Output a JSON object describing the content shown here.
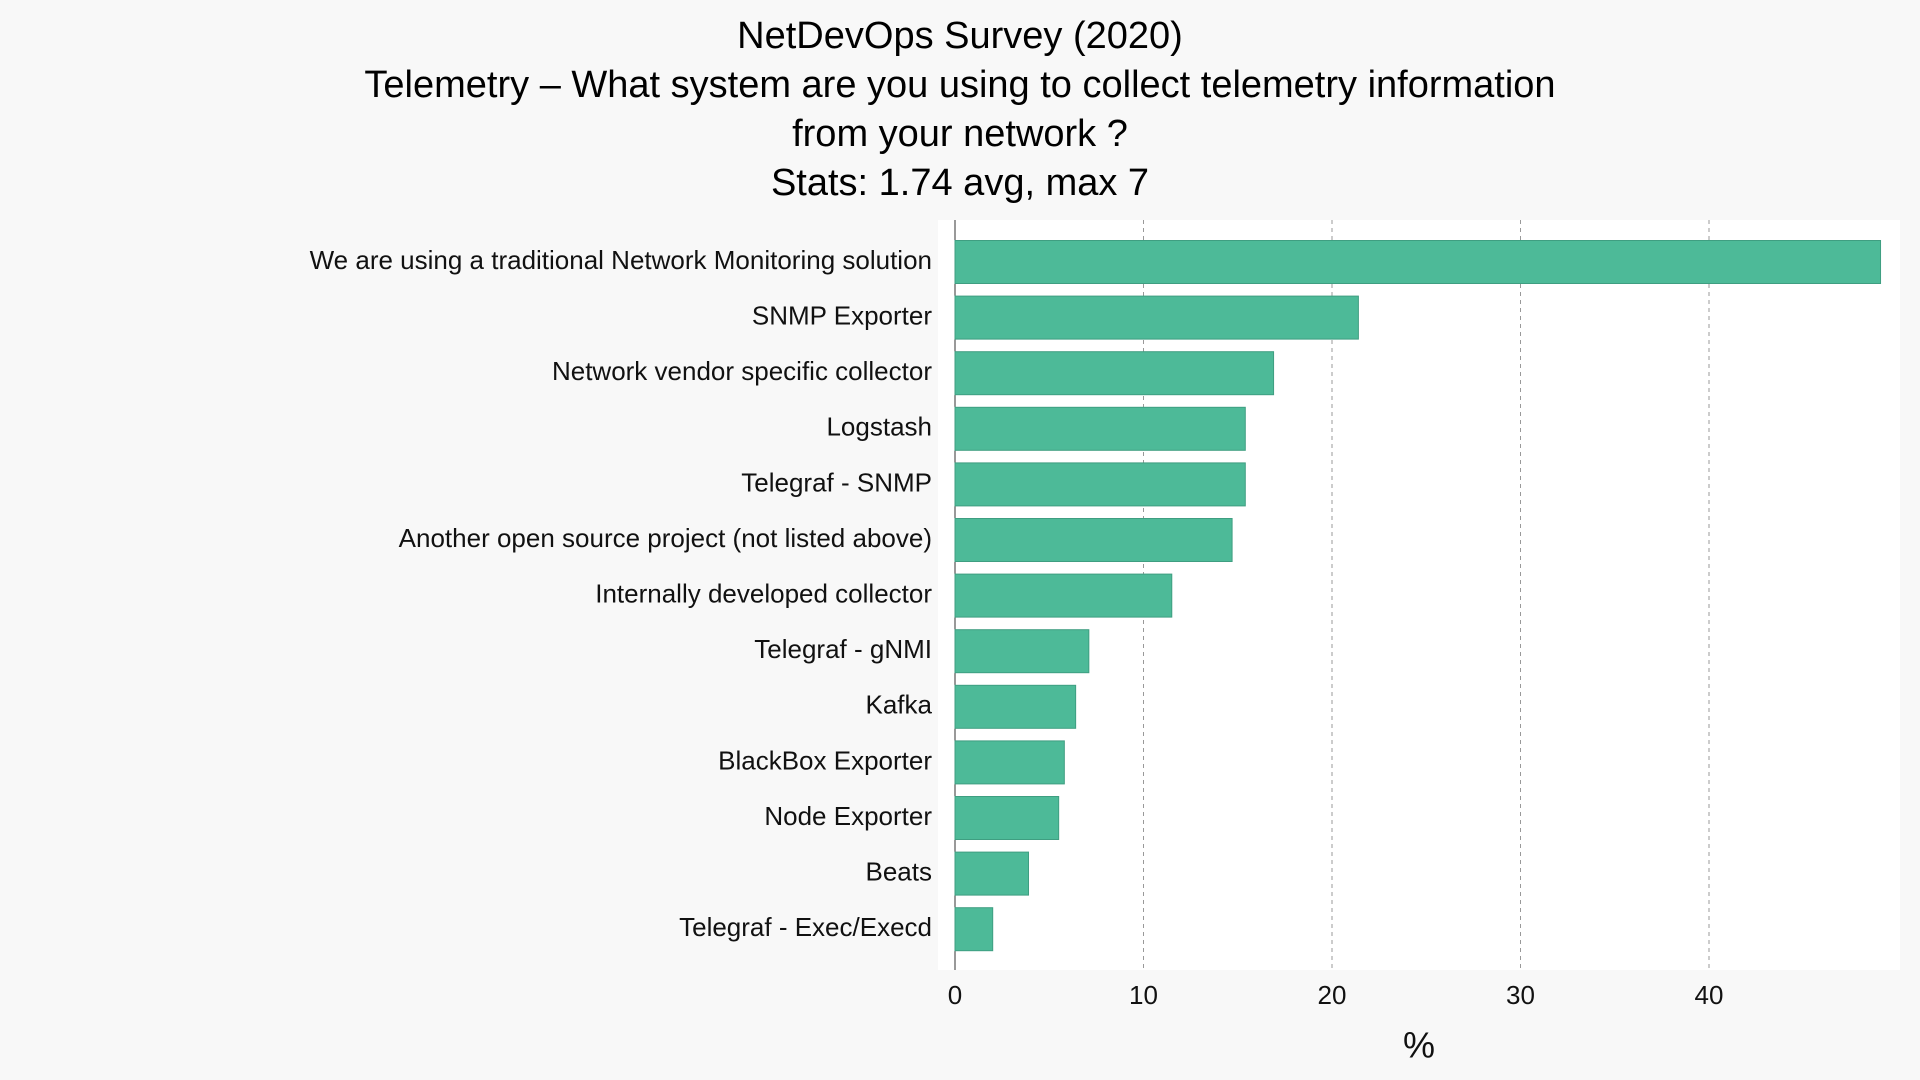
{
  "chart_data": {
    "type": "bar",
    "orientation": "horizontal",
    "title_lines": [
      "NetDevOps Survey (2020)",
      "Telemetry – What system are you using to collect telemetry information",
      "from your network ?",
      "Stats: 1.74 avg, max 7"
    ],
    "xlabel": "%",
    "ylabel": "",
    "xlim": [
      0,
      50
    ],
    "xticks": [
      0,
      10,
      20,
      30,
      40
    ],
    "grid": "vertical dashed",
    "colors": {
      "bar": "#4dba98",
      "bar_edge": "#3f9e81",
      "background": "#f8f8f8",
      "plot_area": "#ffffff",
      "grid": "#999999"
    },
    "categories": [
      "We are using a traditional Network Monitoring solution",
      "SNMP Exporter",
      "Network vendor specific collector",
      "Logstash",
      "Telegraf - SNMP",
      "Another open source project (not listed above)",
      "Internally developed collector",
      "Telegraf - gNMI",
      "Kafka",
      "BlackBox Exporter",
      "Node Exporter",
      "Beats",
      "Telegraf - Exec/Execd"
    ],
    "values": [
      49.1,
      21.4,
      16.9,
      15.4,
      15.4,
      14.7,
      11.5,
      7.1,
      6.4,
      5.8,
      5.5,
      3.9,
      2.0
    ]
  }
}
